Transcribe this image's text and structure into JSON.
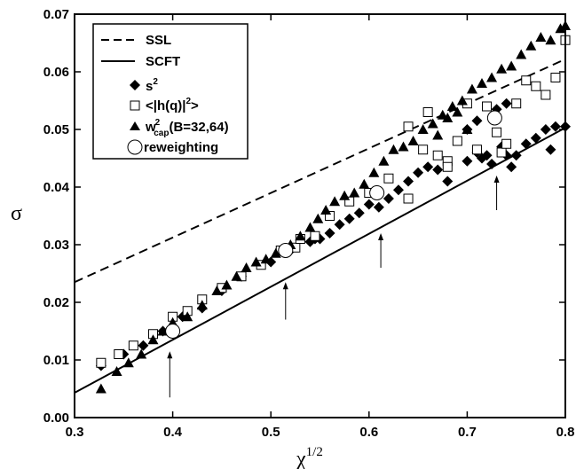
{
  "chart_data": {
    "type": "scatter",
    "title": "",
    "xlabel": "χ",
    "xlabel_sup": "1/2",
    "ylabel": "σ",
    "xlim": [
      0.3,
      0.8
    ],
    "ylim": [
      0.0,
      0.07
    ],
    "x_ticks": [
      "0.3",
      "0.4",
      "0.5",
      "0.6",
      "0.7",
      "0.8"
    ],
    "y_ticks": [
      "0.00",
      "0.01",
      "0.02",
      "0.03",
      "0.04",
      "0.05",
      "0.06",
      "0.07"
    ],
    "grid": false,
    "legend_position": "top-left",
    "legend": [
      {
        "key": "ssl",
        "text": "SSL"
      },
      {
        "key": "scft",
        "text": "SCFT"
      },
      {
        "key": "s2",
        "text": "s",
        "sup": "2"
      },
      {
        "key": "hq",
        "text": "<|h(q)|",
        "sup": "2",
        "tail": ">"
      },
      {
        "key": "wcap",
        "text": "w",
        "sup": "2",
        "sub": "cap",
        "tail": "(B=32,64)"
      },
      {
        "key": "reweighting",
        "text": "reweighting"
      }
    ],
    "series": [
      {
        "name": "SSL",
        "marker": "dashed-line",
        "x": [
          0.3,
          0.8
        ],
        "y": [
          0.0235,
          0.0622
        ]
      },
      {
        "name": "SCFT",
        "marker": "solid-line",
        "x": [
          0.3,
          0.8
        ],
        "y": [
          0.0043,
          0.0503
        ]
      },
      {
        "name": "s²",
        "marker": "diamond",
        "x": [
          0.327,
          0.35,
          0.37,
          0.39,
          0.41,
          0.43,
          0.45,
          0.47,
          0.5,
          0.52,
          0.54,
          0.545,
          0.55,
          0.56,
          0.57,
          0.58,
          0.59,
          0.6,
          0.61,
          0.62,
          0.63,
          0.64,
          0.65,
          0.66,
          0.67,
          0.68,
          0.7,
          0.71,
          0.715,
          0.72,
          0.725,
          0.735,
          0.74,
          0.745,
          0.75,
          0.76,
          0.77,
          0.78,
          0.785,
          0.79,
          0.8,
          0.7,
          0.71,
          0.73,
          0.74
        ],
        "y": [
          0.009,
          0.011,
          0.0125,
          0.015,
          0.0175,
          0.019,
          0.022,
          0.0245,
          0.027,
          0.029,
          0.0305,
          0.031,
          0.031,
          0.032,
          0.0335,
          0.0345,
          0.0355,
          0.037,
          0.0365,
          0.038,
          0.0395,
          0.041,
          0.0425,
          0.0435,
          0.043,
          0.041,
          0.0445,
          0.046,
          0.045,
          0.0455,
          0.044,
          0.047,
          0.0455,
          0.0435,
          0.0455,
          0.0475,
          0.0485,
          0.05,
          0.0465,
          0.0505,
          0.0505,
          0.05,
          0.0515,
          0.0535,
          0.0545
        ]
      },
      {
        "name": "<|h(q)|²>",
        "marker": "open-square",
        "x": [
          0.327,
          0.345,
          0.36,
          0.38,
          0.4,
          0.415,
          0.43,
          0.45,
          0.47,
          0.49,
          0.51,
          0.525,
          0.53,
          0.545,
          0.56,
          0.58,
          0.6,
          0.62,
          0.64,
          0.66,
          0.67,
          0.68,
          0.69,
          0.7,
          0.71,
          0.72,
          0.73,
          0.735,
          0.75,
          0.76,
          0.77,
          0.78,
          0.79,
          0.8,
          0.74,
          0.68,
          0.64,
          0.655
        ],
        "y": [
          0.0095,
          0.011,
          0.0125,
          0.0145,
          0.0175,
          0.0185,
          0.0205,
          0.0225,
          0.0245,
          0.0265,
          0.029,
          0.0295,
          0.031,
          0.0315,
          0.035,
          0.0375,
          0.039,
          0.0415,
          0.038,
          0.053,
          0.0455,
          0.0445,
          0.048,
          0.0545,
          0.0465,
          0.054,
          0.0495,
          0.046,
          0.0545,
          0.0585,
          0.0575,
          0.056,
          0.059,
          0.0655,
          0.0475,
          0.0435,
          0.0505,
          0.0465
        ]
      },
      {
        "name": "w²cap(B=32,64)",
        "marker": "filled-triangle",
        "x": [
          0.327,
          0.343,
          0.355,
          0.368,
          0.38,
          0.39,
          0.4,
          0.415,
          0.43,
          0.445,
          0.455,
          0.465,
          0.475,
          0.485,
          0.495,
          0.505,
          0.52,
          0.53,
          0.54,
          0.548,
          0.556,
          0.565,
          0.575,
          0.585,
          0.595,
          0.605,
          0.615,
          0.625,
          0.635,
          0.645,
          0.655,
          0.665,
          0.675,
          0.685,
          0.695,
          0.705,
          0.715,
          0.725,
          0.735,
          0.745,
          0.755,
          0.765,
          0.775,
          0.785,
          0.795,
          0.8,
          0.68,
          0.69,
          0.67,
          0.7
        ],
        "y": [
          0.005,
          0.008,
          0.0095,
          0.011,
          0.0135,
          0.015,
          0.0165,
          0.0175,
          0.0195,
          0.022,
          0.023,
          0.0245,
          0.026,
          0.027,
          0.0275,
          0.0285,
          0.03,
          0.0315,
          0.033,
          0.0345,
          0.036,
          0.0375,
          0.0385,
          0.039,
          0.0405,
          0.0425,
          0.0445,
          0.0465,
          0.047,
          0.048,
          0.05,
          0.051,
          0.0525,
          0.054,
          0.055,
          0.057,
          0.058,
          0.059,
          0.0605,
          0.061,
          0.063,
          0.0645,
          0.066,
          0.0655,
          0.0675,
          0.068,
          0.052,
          0.053,
          0.049,
          0.05
        ]
      },
      {
        "name": "reweighting",
        "marker": "open-circle",
        "x": [
          0.4,
          0.515,
          0.608,
          0.728
        ],
        "y": [
          0.015,
          0.029,
          0.039,
          0.052
        ]
      }
    ],
    "annotations": [
      {
        "type": "arrow-up",
        "x": 0.397,
        "y_from": 0.0035,
        "y_to": 0.0115
      },
      {
        "type": "arrow-up",
        "x": 0.515,
        "y_from": 0.017,
        "y_to": 0.0235
      },
      {
        "type": "arrow-up",
        "x": 0.612,
        "y_from": 0.026,
        "y_to": 0.032
      },
      {
        "type": "arrow-up",
        "x": 0.73,
        "y_from": 0.036,
        "y_to": 0.042
      }
    ]
  }
}
